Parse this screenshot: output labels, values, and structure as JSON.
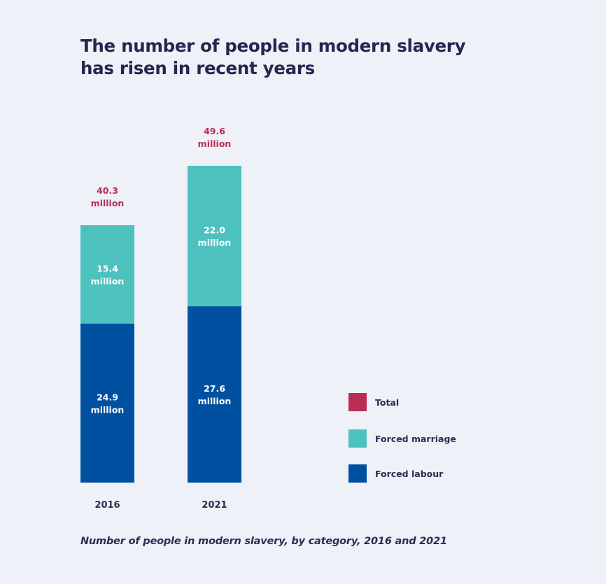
{
  "title_lines": [
    "The number of people in modern slavery",
    "has risen in recent years"
  ],
  "caption": "Number of people in modern slavery, by category, 2016 and 2021",
  "colors": {
    "total": "#b92d56",
    "forced_marriage": "#4dc1bd",
    "forced_labour": "#0050a2",
    "text_dark": "#2c2c55",
    "text_light": "#ffffff"
  },
  "chart_data": {
    "type": "bar",
    "stacked": true,
    "title": "The number of people in modern slavery has risen in recent years",
    "caption": "Number of people in modern slavery, by category, 2016 and 2021",
    "categories": [
      "2016",
      "2021"
    ],
    "unit": "million",
    "series": [
      {
        "name": "Forced labour",
        "key": "forced_labour",
        "values": [
          24.9,
          27.6
        ]
      },
      {
        "name": "Forced marriage",
        "key": "forced_marriage",
        "values": [
          15.4,
          22.0
        ]
      }
    ],
    "totals": [
      40.3,
      49.6
    ],
    "value_labels": {
      "forced_labour": [
        "24.9",
        "27.6"
      ],
      "forced_marriage": [
        "15.4",
        "22.0"
      ],
      "total": [
        "40.3",
        "49.6"
      ]
    },
    "legend": [
      {
        "label": "Total",
        "key": "total"
      },
      {
        "label": "Forced marriage",
        "key": "forced_marriage"
      },
      {
        "label": "Forced labour",
        "key": "forced_labour"
      }
    ],
    "legend_position": "right",
    "xlabel": "",
    "ylabel": "",
    "ylim": [
      0,
      50
    ],
    "grid": false,
    "axes_visible": false
  }
}
